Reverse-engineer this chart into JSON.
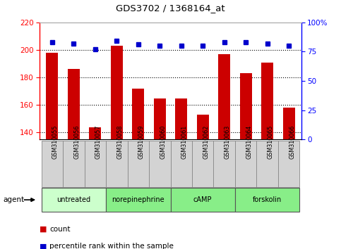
{
  "title": "GDS3702 / 1368164_at",
  "samples": [
    "GSM310055",
    "GSM310056",
    "GSM310057",
    "GSM310058",
    "GSM310059",
    "GSM310060",
    "GSM310061",
    "GSM310062",
    "GSM310063",
    "GSM310064",
    "GSM310065",
    "GSM310066"
  ],
  "counts": [
    198,
    186,
    144,
    203,
    172,
    165,
    165,
    153,
    197,
    183,
    191,
    158
  ],
  "percentiles": [
    83,
    82,
    77,
    84,
    81,
    80,
    80,
    80,
    83,
    83,
    82,
    80
  ],
  "groups": [
    {
      "label": "untreated",
      "start": 0,
      "end": 3,
      "color": "#ccffcc"
    },
    {
      "label": "norepinephrine",
      "start": 3,
      "end": 6,
      "color": "#88ee88"
    },
    {
      "label": "cAMP",
      "start": 6,
      "end": 9,
      "color": "#88ee88"
    },
    {
      "label": "forskolin",
      "start": 9,
      "end": 12,
      "color": "#88ee88"
    }
  ],
  "ylim_left": [
    135,
    220
  ],
  "ylim_right": [
    0,
    100
  ],
  "yticks_left": [
    140,
    160,
    180,
    200,
    220
  ],
  "yticks_right": [
    0,
    25,
    50,
    75,
    100
  ],
  "bar_color": "#cc0000",
  "dot_color": "#0000cc",
  "bg_color": "#ffffff",
  "grid_color": "#000000",
  "spine_color": "#aaaaaa"
}
